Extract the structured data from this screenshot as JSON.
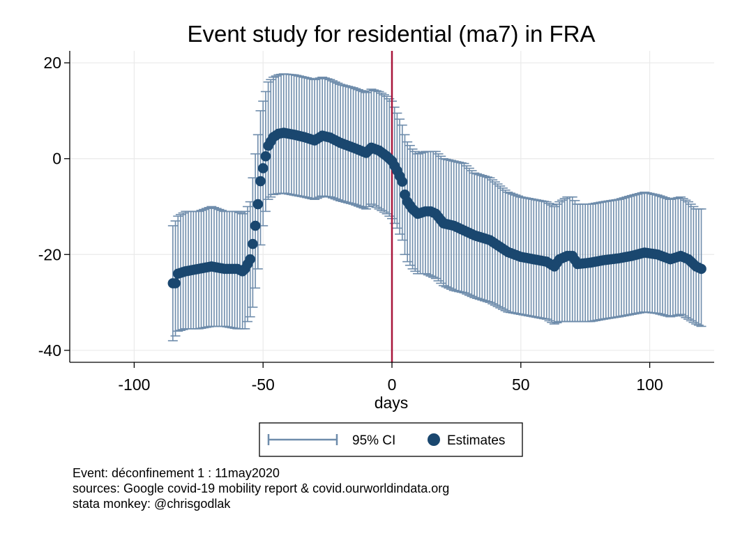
{
  "chart_data": {
    "type": "scatter",
    "title": "Event study for residential (ma7) in FRA",
    "xlabel": "days",
    "ylabel": "",
    "xlim": [
      -125,
      125
    ],
    "ylim": [
      -42.5,
      22.5
    ],
    "xticks": [
      -100,
      -50,
      0,
      50,
      100
    ],
    "yticks": [
      20,
      0,
      -20,
      -40
    ],
    "grid": true,
    "event_line_x": 0,
    "legend": {
      "placement": "bottom",
      "entries": [
        "95% CI",
        "Estimates"
      ]
    },
    "series": [
      {
        "name": "Estimates",
        "kind": "point_with_ci",
        "anchors": [
          [
            -85,
            -26,
            -38,
            -14
          ],
          [
            -84,
            -26,
            -37,
            -13
          ],
          [
            -83,
            -24,
            -36,
            -12
          ],
          [
            -80,
            -23.5,
            -35.5,
            -11
          ],
          [
            -75,
            -23,
            -35.5,
            -11
          ],
          [
            -70,
            -22.5,
            -35,
            -10
          ],
          [
            -65,
            -23,
            -35,
            -11
          ],
          [
            -60,
            -23,
            -35.5,
            -11
          ],
          [
            -58,
            -23.5,
            -35.5,
            -11.5
          ],
          [
            -57,
            -23,
            -35.5,
            -11
          ],
          [
            -56,
            -22,
            -34,
            -10
          ],
          [
            -55,
            -21,
            -33,
            -9
          ],
          [
            -54,
            -17.8,
            -31,
            -4
          ],
          [
            -53,
            -14,
            -27,
            1
          ],
          [
            -52,
            -9.5,
            -23,
            5
          ],
          [
            -51,
            -4.7,
            -18,
            10
          ],
          [
            -50,
            -2,
            -14,
            12
          ],
          [
            -49,
            0.5,
            -11,
            14
          ],
          [
            -48,
            2.7,
            -8.5,
            16
          ],
          [
            -46,
            4.5,
            -7.5,
            17
          ],
          [
            -44,
            5.2,
            -7.3,
            17.5
          ],
          [
            -42,
            5.4,
            -7.2,
            17.7
          ],
          [
            -38,
            5,
            -7.6,
            17.5
          ],
          [
            -34,
            4.5,
            -8,
            17
          ],
          [
            -30,
            3.8,
            -8.5,
            16.5
          ],
          [
            -27,
            4.8,
            -7.8,
            17
          ],
          [
            -24,
            4.4,
            -8,
            16.5
          ],
          [
            -20,
            3.3,
            -8.8,
            15.5
          ],
          [
            -15,
            2.3,
            -9.5,
            14.8
          ],
          [
            -10,
            1.2,
            -10.5,
            13.8
          ],
          [
            -8,
            2.3,
            -9.5,
            14.5
          ],
          [
            -5,
            1.7,
            -10.5,
            14
          ],
          [
            -2,
            0.5,
            -11.5,
            13
          ],
          [
            0,
            -0.5,
            -12.5,
            12
          ],
          [
            2,
            -2.5,
            -14.5,
            9.5
          ],
          [
            4,
            -4.8,
            -17,
            7
          ],
          [
            5,
            -7.5,
            -20,
            5
          ],
          [
            6,
            -9,
            -21.5,
            3.5
          ],
          [
            8,
            -10.5,
            -23,
            2
          ],
          [
            10,
            -11.5,
            -24,
            1
          ],
          [
            13,
            -11,
            -24,
            1.5
          ],
          [
            15,
            -11,
            -24.5,
            1.5
          ],
          [
            17,
            -11.5,
            -25,
            1.5
          ],
          [
            20,
            -13.5,
            -26.5,
            0
          ],
          [
            24,
            -14,
            -27.5,
            -0.5
          ],
          [
            28,
            -15,
            -28,
            -1
          ],
          [
            32,
            -16,
            -29,
            -3
          ],
          [
            38,
            -17,
            -30,
            -4
          ],
          [
            45,
            -19.5,
            -32,
            -7
          ],
          [
            50,
            -20.5,
            -32.5,
            -8
          ],
          [
            55,
            -21,
            -33,
            -8.5
          ],
          [
            60,
            -21.5,
            -33.5,
            -9
          ],
          [
            63,
            -22.5,
            -34.5,
            -10
          ],
          [
            65,
            -21,
            -34,
            -9
          ],
          [
            68,
            -20.3,
            -34,
            -8
          ],
          [
            70,
            -20.3,
            -34,
            -8
          ],
          [
            72,
            -22,
            -34,
            -9.5
          ],
          [
            77,
            -21.7,
            -34,
            -9.5
          ],
          [
            82,
            -21.2,
            -33.5,
            -9
          ],
          [
            88,
            -20.8,
            -33,
            -8.5
          ],
          [
            93,
            -20.3,
            -32.5,
            -7.7
          ],
          [
            98,
            -19.6,
            -32,
            -7
          ],
          [
            103,
            -20,
            -32.3,
            -7.6
          ],
          [
            108,
            -21,
            -33,
            -8.5
          ],
          [
            112,
            -20.3,
            -32.5,
            -8
          ],
          [
            115,
            -21,
            -33.5,
            -9
          ],
          [
            118,
            -22.5,
            -34.5,
            -10.5
          ],
          [
            120,
            -23,
            -35,
            -10.5
          ]
        ]
      }
    ]
  },
  "notes": [
    "Event: déconfinement 1 : 11may2020",
    "sources: Google covid-19 mobility report & covid.ourworldindata.org",
    "stata monkey: @chrisgodlak"
  ],
  "colors": {
    "point": "#1a476f",
    "ci": "#6e8cab",
    "event_line": "#a8153a",
    "grid": "#eaeaea",
    "axis": "#000000"
  }
}
